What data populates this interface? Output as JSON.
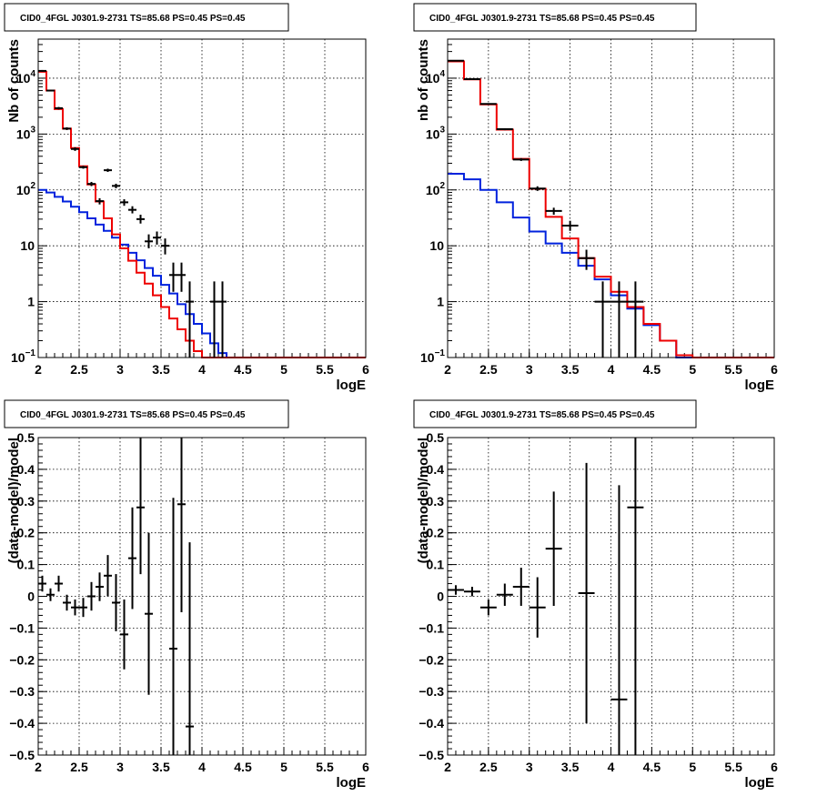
{
  "colors": {
    "data": "#000000",
    "model_total": "#ee0000",
    "model_background": "#0022dd",
    "grid": "#000000",
    "frame": "#000000"
  },
  "chart_data": [
    {
      "type": "histogram-logy",
      "title": "CID0_4FGL J0301.9-2731 TS=85.68 PS=0.45 PS=0.45",
      "xlabel": "logE",
      "ylabel": "Nb of counts",
      "xlim": [
        2,
        6
      ],
      "ylim": [
        0.1,
        50000
      ],
      "log_y": true,
      "grid": true,
      "x_ticks": [
        "2",
        "2.5",
        "3",
        "3.5",
        "4",
        "4.5",
        "5",
        "5.5",
        "6"
      ],
      "y_ticks": [
        {
          "value": 0.1,
          "label": "10",
          "exp": "−1"
        },
        {
          "value": 1,
          "label": "1",
          "exp": ""
        },
        {
          "value": 10,
          "label": "10",
          "exp": ""
        },
        {
          "value": 100,
          "label": "10",
          "exp": "2"
        },
        {
          "value": 1000,
          "label": "10",
          "exp": "3"
        },
        {
          "value": 10000,
          "label": "10",
          "exp": "4"
        }
      ],
      "bin_edges": [
        2.0,
        2.1,
        2.2,
        2.3,
        2.4,
        2.5,
        2.6,
        2.7,
        2.8,
        2.9,
        3.0,
        3.1,
        3.2,
        3.3,
        3.4,
        3.5,
        3.6,
        3.7,
        3.8,
        3.9,
        4.0,
        4.1,
        4.2,
        4.3,
        4.4,
        4.5,
        4.6,
        4.7,
        4.8,
        4.9,
        5.0,
        5.1,
        5.2,
        5.3,
        5.4,
        5.5,
        5.6,
        5.7,
        5.8,
        5.9,
        6.0
      ],
      "series": [
        {
          "role": "model_total",
          "values": [
            13000,
            6000,
            2800,
            1250,
            560,
            265,
            125,
            62,
            31,
            16,
            9,
            5.4,
            3.3,
            2.1,
            1.3,
            0.8,
            0.5,
            0.32,
            0.2,
            0.13,
            0.1,
            0.1,
            0.1,
            0.1,
            0.1,
            0.1,
            0.1,
            0.1,
            0.1,
            0.1,
            0.1,
            0.1,
            0.1,
            0.1,
            0.1,
            0.1,
            0.1,
            0.1,
            0.1,
            0.1
          ]
        },
        {
          "role": "model_background",
          "values": [
            100,
            90,
            75,
            62,
            50,
            40,
            31,
            24,
            18.5,
            14,
            10.5,
            7.5,
            5.5,
            4.0,
            2.9,
            2.0,
            1.4,
            0.9,
            0.6,
            0.4,
            0.27,
            0.18,
            0.12,
            0.1,
            0.1,
            0.1,
            0.1,
            0.1,
            0.1,
            0.1,
            0.1,
            0.1,
            0.1,
            0.1,
            0.1,
            0.1,
            0.1,
            0.1,
            0.1,
            0.1
          ]
        },
        {
          "role": "data",
          "points": [
            {
              "x": 2.05,
              "y": 13500,
              "lo": 13000,
              "hi": 14000
            },
            {
              "x": 2.15,
              "y": 6000,
              "lo": 5800,
              "hi": 6200
            },
            {
              "x": 2.25,
              "y": 2900,
              "lo": 2750,
              "hi": 3050
            },
            {
              "x": 2.35,
              "y": 1250,
              "lo": 1180,
              "hi": 1320
            },
            {
              "x": 2.45,
              "y": 540,
              "lo": 500,
              "hi": 580
            },
            {
              "x": 2.55,
              "y": 255,
              "lo": 240,
              "hi": 270
            },
            {
              "x": 2.65,
              "y": 128,
              "lo": 117,
              "hi": 139
            },
            {
              "x": 2.75,
              "y": 63,
              "lo": 55,
              "hi": 71
            },
            {
              "x": 2.85,
              "y": 225,
              "lo": 210,
              "hi": 240
            },
            {
              "x": 2.95,
              "y": 118,
              "lo": 107,
              "hi": 129
            },
            {
              "x": 3.05,
              "y": 60,
              "lo": 52,
              "hi": 68
            },
            {
              "x": 3.15,
              "y": 44,
              "lo": 38,
              "hi": 51
            },
            {
              "x": 3.25,
              "y": 30,
              "lo": 25,
              "hi": 36
            },
            {
              "x": 3.35,
              "y": 12,
              "lo": 9,
              "hi": 16
            },
            {
              "x": 3.45,
              "y": 14,
              "lo": 10.5,
              "hi": 18
            },
            {
              "x": 3.55,
              "y": 10,
              "lo": 7,
              "hi": 13.5
            },
            {
              "x": 3.65,
              "y": 3,
              "lo": 1.5,
              "hi": 5
            },
            {
              "x": 3.75,
              "y": 3,
              "lo": 1.5,
              "hi": 5
            },
            {
              "x": 3.85,
              "y": 1,
              "lo": 0.1,
              "hi": 2.3
            },
            {
              "x": 4.15,
              "y": 1,
              "lo": 0.1,
              "hi": 2.3
            },
            {
              "x": 4.25,
              "y": 1,
              "lo": 0.1,
              "hi": 2.3
            }
          ]
        }
      ]
    },
    {
      "type": "histogram-logy",
      "title": "CID0_4FGL J0301.9-2731 TS=85.68 PS=0.45 PS=0.45",
      "xlabel": "logE",
      "ylabel": "nb of counts",
      "xlim": [
        2,
        6
      ],
      "ylim": [
        0.1,
        50000
      ],
      "log_y": true,
      "grid": true,
      "x_ticks": [
        "2",
        "2.5",
        "3",
        "3.5",
        "4",
        "4.5",
        "5",
        "5.5",
        "6"
      ],
      "y_ticks": [
        {
          "value": 0.1,
          "label": "10",
          "exp": "−1"
        },
        {
          "value": 1,
          "label": "1",
          "exp": ""
        },
        {
          "value": 10,
          "label": "10",
          "exp": ""
        },
        {
          "value": 100,
          "label": "10",
          "exp": "2"
        },
        {
          "value": 1000,
          "label": "10",
          "exp": "3"
        },
        {
          "value": 10000,
          "label": "10",
          "exp": "4"
        }
      ],
      "bin_edges": [
        2.0,
        2.2,
        2.4,
        2.6,
        2.8,
        3.0,
        3.2,
        3.4,
        3.6,
        3.8,
        4.0,
        4.2,
        4.4,
        4.6,
        4.8,
        5.0,
        5.2,
        5.4,
        5.6,
        5.8,
        6.0
      ],
      "series": [
        {
          "role": "model_total",
          "values": [
            20000,
            9500,
            3400,
            1200,
            360,
            105,
            33,
            13.5,
            6,
            2.8,
            1.5,
            0.8,
            0.4,
            0.2,
            0.11,
            0.1,
            0.1,
            0.1,
            0.1,
            0.1
          ]
        },
        {
          "role": "model_background",
          "values": [
            195,
            155,
            100,
            60,
            32,
            18,
            11,
            7.5,
            4.4,
            2.5,
            1.3,
            0.75,
            0.38,
            0.2,
            0.1,
            0.1,
            0.1,
            0.1,
            0.1,
            0.1
          ]
        },
        {
          "role": "data",
          "points": [
            {
              "x": 2.1,
              "y": 20500,
              "lo": 20100,
              "hi": 20900
            },
            {
              "x": 2.3,
              "y": 9600,
              "lo": 9400,
              "hi": 9800
            },
            {
              "x": 2.5,
              "y": 3450,
              "lo": 3350,
              "hi": 3550
            },
            {
              "x": 2.7,
              "y": 1220,
              "lo": 1170,
              "hi": 1270
            },
            {
              "x": 2.9,
              "y": 350,
              "lo": 330,
              "hi": 370
            },
            {
              "x": 3.1,
              "y": 106,
              "lo": 96,
              "hi": 116
            },
            {
              "x": 3.3,
              "y": 42,
              "lo": 36,
              "hi": 48
            },
            {
              "x": 3.5,
              "y": 23,
              "lo": 18.5,
              "hi": 28
            },
            {
              "x": 3.7,
              "y": 6,
              "lo": 3.7,
              "hi": 8.5
            },
            {
              "x": 3.9,
              "y": 1,
              "lo": 0.1,
              "hi": 2.3
            },
            {
              "x": 4.1,
              "y": 1,
              "lo": 0.1,
              "hi": 2.3
            },
            {
              "x": 4.3,
              "y": 1,
              "lo": 0.1,
              "hi": 2.3
            }
          ]
        }
      ]
    },
    {
      "type": "scatter-errorbars",
      "title": "CID0_4FGL J0301.9-2731 TS=85.68 PS=0.45 PS=0.45",
      "xlabel": "logE",
      "ylabel": "(data-model)/model",
      "xlim": [
        2,
        6
      ],
      "ylim": [
        -0.5,
        0.5
      ],
      "grid": true,
      "x_ticks": [
        "2",
        "2.5",
        "3",
        "3.5",
        "4",
        "4.5",
        "5",
        "5.5",
        "6"
      ],
      "y_ticks": [
        "−0.5",
        "−0.4",
        "−0.3",
        "−0.2",
        "−0.1",
        "0",
        "0.1",
        "0.2",
        "0.3",
        "0.4",
        "0.5"
      ],
      "xerr": 0.05,
      "points": [
        {
          "x": 2.05,
          "y": 0.04,
          "lo": 0.015,
          "hi": 0.065
        },
        {
          "x": 2.15,
          "y": 0.005,
          "lo": -0.015,
          "hi": 0.025
        },
        {
          "x": 2.25,
          "y": 0.04,
          "lo": 0.015,
          "hi": 0.065
        },
        {
          "x": 2.35,
          "y": -0.02,
          "lo": -0.045,
          "hi": 0.005
        },
        {
          "x": 2.45,
          "y": -0.035,
          "lo": -0.06,
          "hi": -0.01
        },
        {
          "x": 2.55,
          "y": -0.035,
          "lo": -0.065,
          "hi": -0.005
        },
        {
          "x": 2.65,
          "y": 0.0,
          "lo": -0.045,
          "hi": 0.045
        },
        {
          "x": 2.75,
          "y": 0.03,
          "lo": -0.015,
          "hi": 0.075
        },
        {
          "x": 2.85,
          "y": 0.065,
          "lo": 0.0,
          "hi": 0.13
        },
        {
          "x": 2.95,
          "y": -0.02,
          "lo": -0.11,
          "hi": 0.07
        },
        {
          "x": 3.05,
          "y": -0.12,
          "lo": -0.23,
          "hi": -0.01
        },
        {
          "x": 3.15,
          "y": 0.12,
          "lo": -0.04,
          "hi": 0.28
        },
        {
          "x": 3.25,
          "y": 0.28,
          "lo": 0.07,
          "hi": 0.5
        },
        {
          "x": 3.35,
          "y": -0.055,
          "lo": -0.31,
          "hi": 0.2
        },
        {
          "x": 3.65,
          "y": -0.165,
          "lo": -0.5,
          "hi": 0.31
        },
        {
          "x": 3.75,
          "y": 0.29,
          "lo": -0.05,
          "hi": 0.5
        },
        {
          "x": 3.85,
          "y": -0.41,
          "lo": -0.5,
          "hi": 0.17
        }
      ]
    },
    {
      "type": "scatter-errorbars",
      "title": "CID0_4FGL J0301.9-2731 TS=85.68 PS=0.45 PS=0.45",
      "xlabel": "logE",
      "ylabel": "(data-model)/model",
      "xlim": [
        2,
        6
      ],
      "ylim": [
        -0.5,
        0.5
      ],
      "grid": true,
      "x_ticks": [
        "2",
        "2.5",
        "3",
        "3.5",
        "4",
        "4.5",
        "5",
        "5.5",
        "6"
      ],
      "y_ticks": [
        "−0.5",
        "−0.4",
        "−0.3",
        "−0.2",
        "−0.1",
        "0",
        "0.1",
        "0.2",
        "0.3",
        "0.4",
        "0.5"
      ],
      "xerr": 0.1,
      "points": [
        {
          "x": 2.1,
          "y": 0.02,
          "lo": 0.005,
          "hi": 0.035
        },
        {
          "x": 2.3,
          "y": 0.015,
          "lo": 0.0,
          "hi": 0.03
        },
        {
          "x": 2.5,
          "y": -0.035,
          "lo": -0.06,
          "hi": -0.01
        },
        {
          "x": 2.7,
          "y": 0.005,
          "lo": -0.03,
          "hi": 0.04
        },
        {
          "x": 2.9,
          "y": 0.03,
          "lo": -0.03,
          "hi": 0.09
        },
        {
          "x": 3.1,
          "y": -0.035,
          "lo": -0.13,
          "hi": 0.06
        },
        {
          "x": 3.3,
          "y": 0.15,
          "lo": -0.03,
          "hi": 0.33
        },
        {
          "x": 3.7,
          "y": 0.01,
          "lo": -0.4,
          "hi": 0.42
        },
        {
          "x": 4.1,
          "y": -0.325,
          "lo": -0.5,
          "hi": 0.35
        },
        {
          "x": 4.3,
          "y": 0.28,
          "lo": -0.5,
          "hi": 0.5
        }
      ]
    }
  ]
}
